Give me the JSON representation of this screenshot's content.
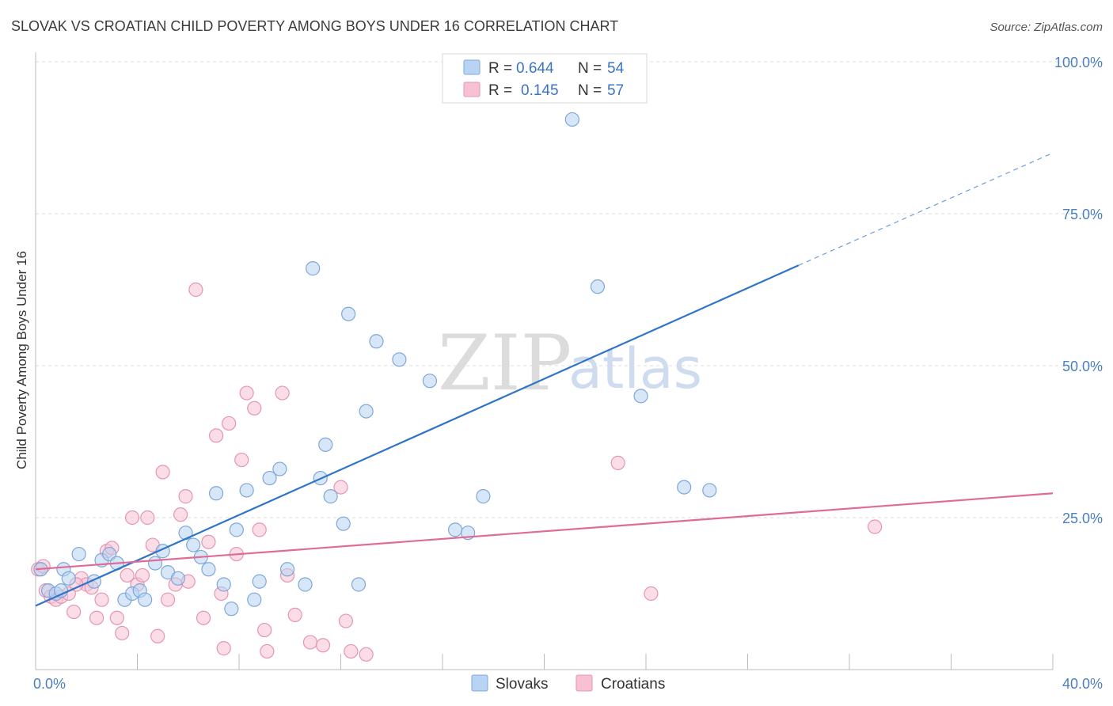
{
  "title": "SLOVAK VS CROATIAN CHILD POVERTY AMONG BOYS UNDER 16 CORRELATION CHART",
  "source": "Source: ZipAtlas.com",
  "watermark": {
    "zip": "ZIP",
    "atlas": "atlas"
  },
  "colors": {
    "slovaks_fill": "#b8d3f3",
    "slovaks_stroke": "#7ea7d8",
    "slovaks_line": "#2e74c9",
    "croatians_fill": "#f7c1d3",
    "croatians_stroke": "#e695b1",
    "croatians_line": "#e06b97"
  },
  "legend": {
    "rows": [
      {
        "r_label": "R = ",
        "r_value": "0.644",
        "n_label": "N = ",
        "n_value": "54"
      },
      {
        "r_label": "R = ",
        "r_value": "0.145",
        "n_label": "N = ",
        "n_value": "57"
      }
    ]
  },
  "chart_data": {
    "type": "scatter",
    "title": "SLOVAK VS CROATIAN CHILD POVERTY AMONG BOYS UNDER 16 CORRELATION CHART",
    "ylabel": "Child Poverty Among Boys Under 16",
    "xlabel": "",
    "xlim": [
      0,
      40
    ],
    "ylim": [
      0,
      100
    ],
    "x_tick_labels": [
      "0.0%",
      "40.0%"
    ],
    "y_ticks": [
      25,
      50,
      75,
      100
    ],
    "y_tick_labels": [
      "25.0%",
      "50.0%",
      "75.0%",
      "100.0%"
    ],
    "grid": true,
    "legend_position": "top-center",
    "series": [
      {
        "name": "Slovaks",
        "r": 0.644,
        "n": 54,
        "trend": {
          "x0": 0,
          "y0": 10.5,
          "x1": 30,
          "y1": 66.5,
          "dashed_to_x": 40,
          "dashed_to_y": 85
        },
        "points": [
          [
            0.2,
            16.5
          ],
          [
            0.5,
            13
          ],
          [
            0.8,
            12.5
          ],
          [
            1.0,
            13
          ],
          [
            1.1,
            16.5
          ],
          [
            1.3,
            15
          ],
          [
            1.7,
            19
          ],
          [
            2.3,
            14.5
          ],
          [
            2.6,
            18
          ],
          [
            2.9,
            19
          ],
          [
            3.2,
            17.5
          ],
          [
            3.5,
            11.5
          ],
          [
            3.8,
            12.5
          ],
          [
            4.1,
            13
          ],
          [
            4.3,
            11.5
          ],
          [
            4.7,
            17.5
          ],
          [
            5.0,
            19.5
          ],
          [
            5.2,
            16
          ],
          [
            5.6,
            15
          ],
          [
            5.9,
            22.5
          ],
          [
            6.2,
            20.5
          ],
          [
            6.5,
            18.5
          ],
          [
            6.8,
            16.5
          ],
          [
            7.1,
            29
          ],
          [
            7.4,
            14
          ],
          [
            7.7,
            10
          ],
          [
            7.9,
            23
          ],
          [
            8.3,
            29.5
          ],
          [
            8.6,
            11.5
          ],
          [
            8.8,
            14.5
          ],
          [
            9.2,
            31.5
          ],
          [
            9.6,
            33
          ],
          [
            9.9,
            16.5
          ],
          [
            10.6,
            14
          ],
          [
            10.9,
            66
          ],
          [
            11.2,
            31.5
          ],
          [
            11.4,
            37
          ],
          [
            11.6,
            28.5
          ],
          [
            12.1,
            24
          ],
          [
            12.3,
            58.5
          ],
          [
            12.7,
            14
          ],
          [
            13.0,
            42.5
          ],
          [
            13.4,
            54
          ],
          [
            14.3,
            51
          ],
          [
            15.5,
            47.5
          ],
          [
            16.5,
            23
          ],
          [
            17.0,
            22.5
          ],
          [
            17.6,
            28.5
          ],
          [
            21.1,
            90.5
          ],
          [
            21.6,
            100
          ],
          [
            22.1,
            63
          ],
          [
            23.8,
            45
          ],
          [
            25.5,
            30
          ],
          [
            26.5,
            29.5
          ]
        ]
      },
      {
        "name": "Croatians",
        "r": 0.145,
        "n": 57,
        "trend": {
          "x0": 0,
          "y0": 16.5,
          "x1": 40,
          "y1": 29
        },
        "points": [
          [
            0.1,
            16.5
          ],
          [
            0.4,
            13
          ],
          [
            0.6,
            12
          ],
          [
            0.8,
            11.5
          ],
          [
            1.0,
            12
          ],
          [
            1.3,
            12.5
          ],
          [
            1.5,
            9.5
          ],
          [
            1.8,
            15
          ],
          [
            2.0,
            14
          ],
          [
            2.2,
            13.5
          ],
          [
            2.4,
            8.5
          ],
          [
            2.6,
            11.5
          ],
          [
            2.8,
            19.5
          ],
          [
            3.0,
            20
          ],
          [
            3.2,
            8.5
          ],
          [
            3.4,
            6
          ],
          [
            3.6,
            15.5
          ],
          [
            3.8,
            25
          ],
          [
            4.0,
            14
          ],
          [
            4.2,
            15.5
          ],
          [
            4.4,
            25
          ],
          [
            4.6,
            20.5
          ],
          [
            4.8,
            5.5
          ],
          [
            5.0,
            32.5
          ],
          [
            5.2,
            11.5
          ],
          [
            5.5,
            14
          ],
          [
            5.7,
            25.5
          ],
          [
            5.9,
            28.5
          ],
          [
            6.0,
            14.5
          ],
          [
            6.3,
            62.5
          ],
          [
            6.6,
            8.5
          ],
          [
            6.8,
            21
          ],
          [
            7.1,
            38.5
          ],
          [
            7.3,
            12.5
          ],
          [
            7.4,
            3.5
          ],
          [
            7.6,
            40.5
          ],
          [
            7.9,
            19
          ],
          [
            8.1,
            34.5
          ],
          [
            8.3,
            45.5
          ],
          [
            8.6,
            43
          ],
          [
            8.8,
            23
          ],
          [
            9.0,
            6.5
          ],
          [
            9.1,
            3
          ],
          [
            9.7,
            45.5
          ],
          [
            9.9,
            15.5
          ],
          [
            10.2,
            9
          ],
          [
            10.8,
            4.5
          ],
          [
            11.3,
            4
          ],
          [
            12.0,
            30
          ],
          [
            12.2,
            8
          ],
          [
            12.4,
            3
          ],
          [
            13.0,
            2.5
          ],
          [
            22.9,
            34
          ],
          [
            24.2,
            12.5
          ],
          [
            33.0,
            23.5
          ],
          [
            0.3,
            17
          ],
          [
            1.6,
            14
          ]
        ]
      }
    ]
  },
  "bottom_legend": [
    {
      "label": "Slovaks"
    },
    {
      "label": "Croatians"
    }
  ]
}
